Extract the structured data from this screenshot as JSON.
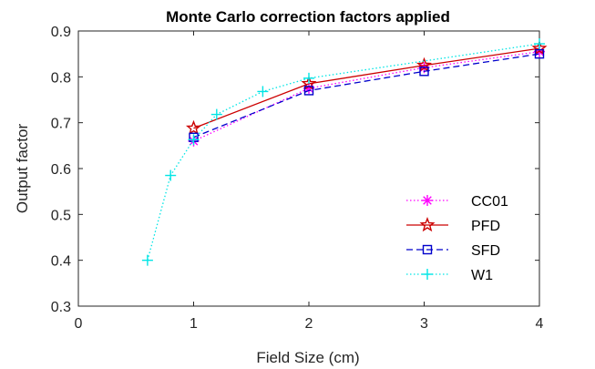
{
  "chart_data": {
    "type": "line",
    "title": "Monte Carlo correction factors applied",
    "xlabel": "Field Size (cm)",
    "ylabel": "Output factor",
    "xlim": [
      0,
      4
    ],
    "ylim": [
      0.3,
      0.9
    ],
    "xticks": [
      "0",
      "1",
      "2",
      "3",
      "4"
    ],
    "yticks": [
      "0.3",
      "0.4",
      "0.5",
      "0.6",
      "0.7",
      "0.8",
      "0.9"
    ],
    "grid": false,
    "legend_position": "lower-right",
    "series": [
      {
        "name": "CC01",
        "color": "#ff00ff",
        "line_style": "dotted",
        "marker": "asterisk",
        "x": [
          1,
          2,
          3,
          4
        ],
        "y": [
          0.66,
          0.775,
          0.82,
          0.855
        ]
      },
      {
        "name": "PFD",
        "color": "#cc0000",
        "line_style": "solid",
        "marker": "star",
        "x": [
          1,
          2,
          3,
          4
        ],
        "y": [
          0.688,
          0.785,
          0.825,
          0.862
        ]
      },
      {
        "name": "SFD",
        "color": "#0000cc",
        "line_style": "dashed",
        "marker": "square",
        "x": [
          1,
          2,
          3,
          4
        ],
        "y": [
          0.668,
          0.77,
          0.812,
          0.85
        ]
      },
      {
        "name": "W1",
        "color": "#00e5e5",
        "line_style": "dotted",
        "marker": "plus",
        "x": [
          0.6,
          0.8,
          1,
          1.2,
          1.6,
          2,
          4
        ],
        "y": [
          0.4,
          0.585,
          0.663,
          0.718,
          0.768,
          0.797,
          0.872
        ]
      }
    ]
  }
}
